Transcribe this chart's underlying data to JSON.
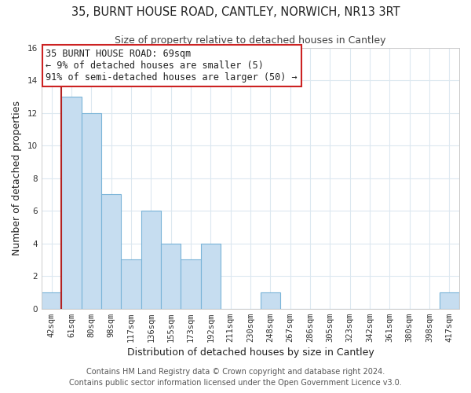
{
  "title": "35, BURNT HOUSE ROAD, CANTLEY, NORWICH, NR13 3RT",
  "subtitle": "Size of property relative to detached houses in Cantley",
  "xlabel": "Distribution of detached houses by size in Cantley",
  "ylabel": "Number of detached properties",
  "bar_color": "#c6ddf0",
  "bar_edge_color": "#7ab4d8",
  "vline_color": "#b22222",
  "bins": [
    "42sqm",
    "61sqm",
    "80sqm",
    "98sqm",
    "117sqm",
    "136sqm",
    "155sqm",
    "173sqm",
    "192sqm",
    "211sqm",
    "230sqm",
    "248sqm",
    "267sqm",
    "286sqm",
    "305sqm",
    "323sqm",
    "342sqm",
    "361sqm",
    "380sqm",
    "398sqm",
    "417sqm"
  ],
  "counts": [
    1,
    13,
    12,
    7,
    3,
    6,
    4,
    3,
    4,
    0,
    0,
    1,
    0,
    0,
    0,
    0,
    0,
    0,
    0,
    0,
    1
  ],
  "vline_bin_index": 1,
  "ylim": [
    0,
    16
  ],
  "yticks": [
    0,
    2,
    4,
    6,
    8,
    10,
    12,
    14,
    16
  ],
  "ann_line1": "35 BURNT HOUSE ROAD: 69sqm",
  "ann_line2": "← 9% of detached houses are smaller (5)",
  "ann_line3": "91% of semi-detached houses are larger (50) →",
  "footer1": "Contains HM Land Registry data © Crown copyright and database right 2024.",
  "footer2": "Contains public sector information licensed under the Open Government Licence v3.0.",
  "grid_color": "#dce8f0",
  "title_fontsize": 10.5,
  "subtitle_fontsize": 9,
  "axis_label_fontsize": 9,
  "tick_fontsize": 7.5,
  "footer_fontsize": 7,
  "ann_fontsize": 8.5
}
